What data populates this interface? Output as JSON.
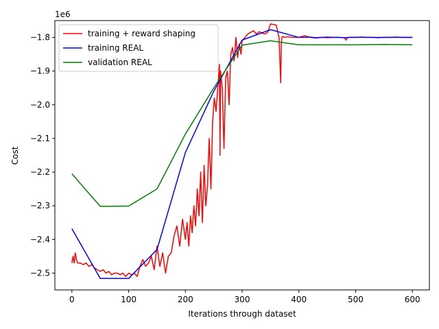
{
  "chart_data": {
    "type": "line",
    "title": "",
    "xlabel": "Iterations through dataset",
    "ylabel": "Cost",
    "offset_label": "1e6",
    "xlim": [
      -30,
      630
    ],
    "ylim": [
      -2.55,
      -1.75
    ],
    "x_ticks": [
      0,
      100,
      200,
      300,
      400,
      500,
      600
    ],
    "x_tick_labels": [
      "0",
      "100",
      "200",
      "300",
      "400",
      "500",
      "600"
    ],
    "y_ticks": [
      -2.5,
      -2.4,
      -2.3,
      -2.2,
      -2.1,
      -2.0,
      -1.9,
      -1.8
    ],
    "y_tick_labels": [
      "−2.5",
      "−2.4",
      "−2.3",
      "−2.2",
      "−2.1",
      "−2.0",
      "−1.9",
      "−1.8"
    ],
    "grid": false,
    "legend_position": "top-left",
    "series": [
      {
        "name": "training + reward shaping",
        "color": "#ff0000",
        "x": [
          0,
          2,
          4,
          6,
          8,
          10,
          15,
          20,
          25,
          30,
          35,
          40,
          45,
          50,
          55,
          60,
          65,
          70,
          75,
          80,
          85,
          90,
          95,
          100,
          105,
          110,
          115,
          120,
          125,
          130,
          135,
          140,
          145,
          150,
          155,
          160,
          165,
          170,
          175,
          180,
          185,
          190,
          195,
          200,
          203,
          206,
          209,
          212,
          215,
          218,
          221,
          224,
          227,
          230,
          233,
          236,
          239,
          242,
          245,
          248,
          251,
          254,
          257,
          260,
          261,
          262,
          265,
          268,
          271,
          274,
          277,
          280,
          283,
          286,
          289,
          292,
          295,
          298,
          300,
          305,
          310,
          315,
          320,
          325,
          330,
          335,
          340,
          345,
          350,
          355,
          360,
          365,
          368,
          369,
          370,
          372,
          375,
          380,
          390,
          400,
          410,
          420,
          430,
          440,
          450,
          460,
          470,
          480,
          483,
          486,
          490,
          500,
          510,
          520,
          530,
          540,
          550,
          560,
          570,
          580,
          590,
          600
        ],
        "y": [
          -2.47,
          -2.45,
          -2.47,
          -2.44,
          -2.46,
          -2.47,
          -2.47,
          -2.475,
          -2.47,
          -2.48,
          -2.475,
          -2.485,
          -2.49,
          -2.495,
          -2.49,
          -2.5,
          -2.495,
          -2.505,
          -2.5,
          -2.5,
          -2.505,
          -2.5,
          -2.51,
          -2.5,
          -2.505,
          -2.5,
          -2.51,
          -2.48,
          -2.46,
          -2.48,
          -2.47,
          -2.45,
          -2.49,
          -2.42,
          -2.48,
          -2.44,
          -2.5,
          -2.45,
          -2.44,
          -2.39,
          -2.36,
          -2.42,
          -2.34,
          -2.4,
          -2.35,
          -2.42,
          -2.33,
          -2.38,
          -2.3,
          -2.36,
          -2.25,
          -2.33,
          -2.2,
          -2.35,
          -2.18,
          -2.3,
          -2.24,
          -2.1,
          -2.25,
          -2.05,
          -1.98,
          -2.02,
          -1.95,
          -1.88,
          -2.15,
          -1.9,
          -1.95,
          -2.13,
          -1.92,
          -1.9,
          -2.0,
          -1.85,
          -1.83,
          -1.87,
          -1.8,
          -1.86,
          -1.82,
          -1.85,
          -1.81,
          -1.8,
          -1.79,
          -1.785,
          -1.78,
          -1.79,
          -1.783,
          -1.787,
          -1.79,
          -1.785,
          -1.76,
          -1.762,
          -1.763,
          -1.8,
          -1.935,
          -1.82,
          -1.8,
          -1.797,
          -1.8,
          -1.798,
          -1.8,
          -1.8,
          -1.795,
          -1.8,
          -1.802,
          -1.8,
          -1.801,
          -1.8,
          -1.8,
          -1.801,
          -1.808,
          -1.8,
          -1.8,
          -1.8,
          -1.8,
          -1.8,
          -1.8,
          -1.8,
          -1.8,
          -1.8,
          -1.8,
          -1.8,
          -1.8,
          -1.8
        ]
      },
      {
        "name": "training REAL",
        "color": "#0000ff",
        "x": [
          0,
          50,
          100,
          150,
          200,
          250,
          300,
          350,
          400,
          410,
          420,
          430,
          440,
          450,
          460,
          470,
          480,
          490,
          500,
          510,
          520,
          530,
          540,
          550,
          560,
          570,
          580,
          590,
          600
        ],
        "y": [
          -2.368,
          -2.516,
          -2.516,
          -2.43,
          -2.142,
          -1.96,
          -1.808,
          -1.777,
          -1.8,
          -1.8,
          -1.799,
          -1.801,
          -1.8,
          -1.799,
          -1.8,
          -1.8,
          -1.801,
          -1.8,
          -1.8,
          -1.799,
          -1.8,
          -1.8,
          -1.801,
          -1.8,
          -1.8,
          -1.799,
          -1.8,
          -1.8,
          -1.8
        ]
      },
      {
        "name": "validation REAL",
        "color": "#008000",
        "x": [
          0,
          50,
          100,
          150,
          200,
          250,
          300,
          350,
          400,
          450,
          500,
          550,
          600
        ],
        "y": [
          -2.205,
          -2.302,
          -2.301,
          -2.25,
          -2.087,
          -1.95,
          -1.823,
          -1.81,
          -1.822,
          -1.822,
          -1.822,
          -1.821,
          -1.822
        ]
      }
    ]
  }
}
